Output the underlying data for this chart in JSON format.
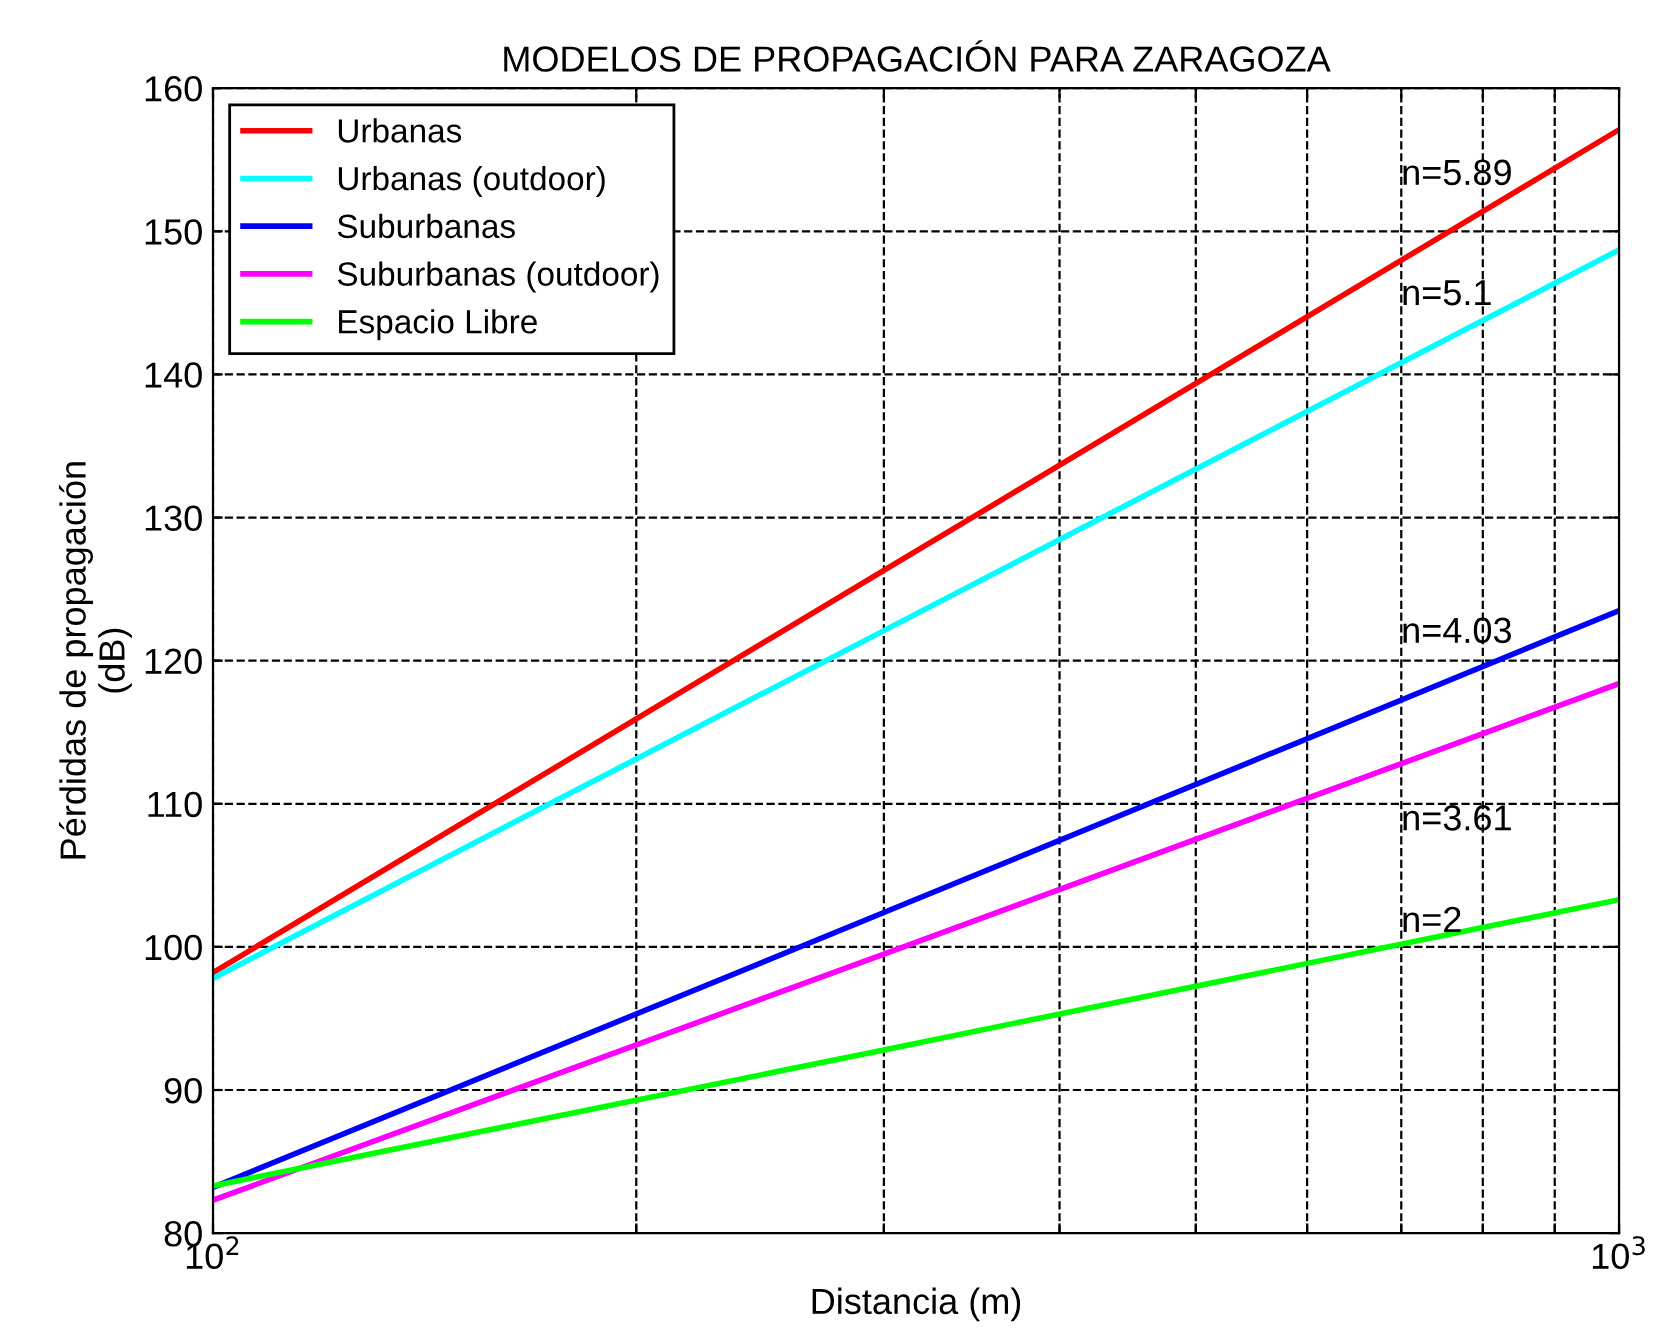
{
  "chart_data": {
    "type": "line",
    "title": "MODELOS DE PROPAGACIÓN PARA ZARAGOZA",
    "xlabel": "Distancia (m)",
    "ylabel": "Pérdidas de propagación\n(dB)",
    "log": "x",
    "x": [
      100,
      300,
      1000
    ],
    "series": [
      {
        "name": "Urbanas",
        "color": "#ff0000",
        "values": [
          98.2,
          126.3,
          157.1
        ]
      },
      {
        "name": "Urbanas (outdoor)",
        "color": "#00ffff",
        "values": [
          97.8,
          122.1,
          148.7
        ]
      },
      {
        "name": "Suburbanas",
        "color": "#0000ff",
        "values": [
          83.2,
          102.4,
          123.5
        ]
      },
      {
        "name": "Suburbanas (outdoor)",
        "color": "#ff00ff",
        "values": [
          82.3,
          99.5,
          118.4
        ]
      },
      {
        "name": "Espacio Libre",
        "color": "#00ff00",
        "values": [
          83.3,
          92.8,
          103.3
        ]
      }
    ],
    "xlim": [
      100,
      1000
    ],
    "ylim": [
      80,
      160
    ],
    "xticks": [
      {
        "value": 100,
        "label": "10$^{2}$"
      },
      {
        "value": 200,
        "label": null
      },
      {
        "value": 300,
        "label": null
      },
      {
        "value": 400,
        "label": null
      },
      {
        "value": 500,
        "label": null
      },
      {
        "value": 600,
        "label": null
      },
      {
        "value": 700,
        "label": null
      },
      {
        "value": 800,
        "label": null
      },
      {
        "value": 900,
        "label": null
      },
      {
        "value": 1000,
        "label": "10$^{3}$"
      }
    ],
    "yticks": [
      80,
      90,
      100,
      110,
      120,
      130,
      140,
      150,
      160
    ],
    "annotations": [
      "n=5.89",
      "n=5.1",
      "n=4.03",
      "n=3.61",
      "n=2"
    ],
    "grid": true,
    "legend": "top left",
    "line_style": "solid",
    "marker": "none"
  }
}
